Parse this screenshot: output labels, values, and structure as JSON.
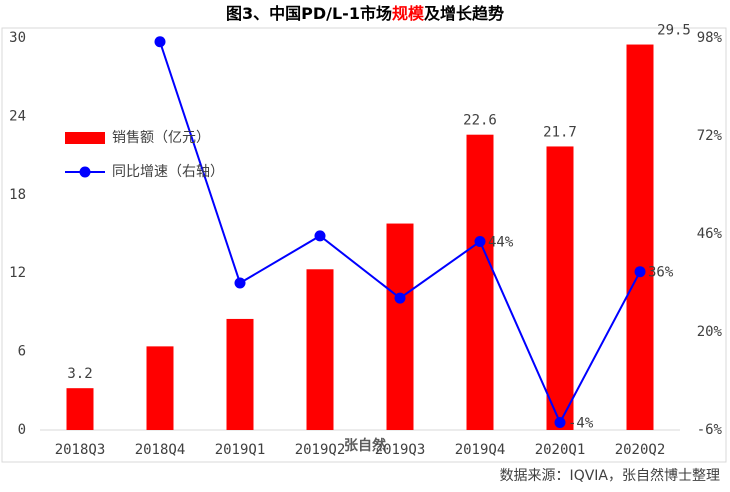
{
  "chart_data": {
    "type": "bar_line",
    "title_segments": [
      {
        "text": "图3、中国PD/L-1市场",
        "color": "#000000"
      },
      {
        "text": "规模",
        "color": "#ff0000"
      },
      {
        "text": "及增长趋势",
        "color": "#000000"
      }
    ],
    "categories": [
      "2018Q3",
      "2018Q4",
      "2019Q1",
      "2019Q2",
      "2019Q3",
      "2019Q4",
      "2020Q1",
      "2020Q2"
    ],
    "series": [
      {
        "name": "销售额（亿元）",
        "type": "bar",
        "color": "#ff0000",
        "values": [
          3.2,
          6.4,
          8.5,
          12.3,
          15.8,
          22.6,
          21.7,
          29.5
        ],
        "value_labels": [
          "3.2",
          null,
          null,
          null,
          null,
          "22.6",
          "21.7",
          "29.5"
        ]
      },
      {
        "name": "同比增速（右轴）",
        "type": "line",
        "axis": "y2",
        "color": "#0000ff",
        "values": [
          null,
          97,
          33,
          45.5,
          29,
          44,
          -4,
          36
        ],
        "value_labels": [
          null,
          null,
          null,
          null,
          null,
          "44%",
          "-4%",
          "36%"
        ]
      }
    ],
    "ylim": [
      0,
      30
    ],
    "yticks": [
      0,
      6,
      12,
      18,
      24,
      30
    ],
    "y2lim": [
      -6,
      98
    ],
    "y2ticks": [
      {
        "value": -6,
        "label": "-6%"
      },
      {
        "value": 20,
        "label": "20%"
      },
      {
        "value": 46,
        "label": "46%"
      },
      {
        "value": 72,
        "label": "72%"
      },
      {
        "value": 98,
        "label": "98%"
      }
    ],
    "legend": "top-left",
    "watermark": "张自然",
    "source": "数据来源：IQVIA，张自然博士整理"
  }
}
